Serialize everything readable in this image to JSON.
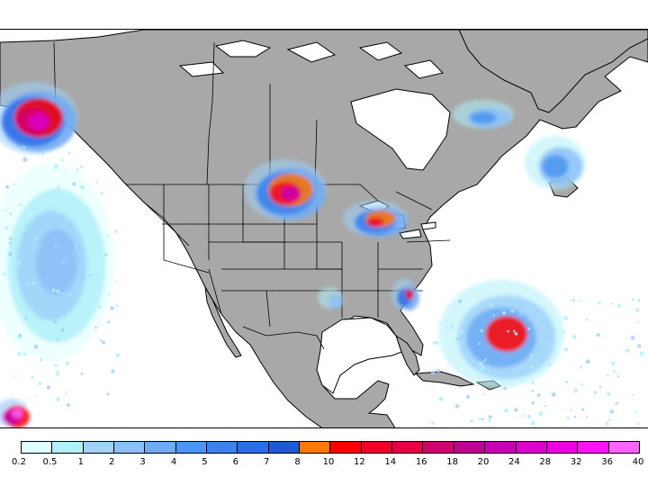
{
  "map": {
    "region": "North America",
    "land_color": "#a8a8a8",
    "ocean_color": "#ffffff",
    "boundary_color": "#000000"
  },
  "legend": {
    "ticks": [
      "0.2",
      "0.5",
      "1",
      "2",
      "3",
      "4",
      "5",
      "6",
      "7",
      "8",
      "10",
      "12",
      "14",
      "16",
      "18",
      "20",
      "24",
      "28",
      "32",
      "36",
      "40"
    ],
    "colors": [
      "#e0ffff",
      "#b0f0f8",
      "#a0d2fa",
      "#8cc0f8",
      "#6eaaf5",
      "#4b96f0",
      "#3c82eb",
      "#2a6ee6",
      "#1e5ad2",
      "#ff7800",
      "#ff0000",
      "#f00028",
      "#e60046",
      "#d2006e",
      "#be0096",
      "#c800b4",
      "#dc00c8",
      "#f000dc",
      "#ff14f0",
      "#ff64ff"
    ]
  },
  "precip_areas": [
    {
      "area": "Gulf of Alaska coast",
      "levels": [
        1,
        3,
        6,
        10,
        16,
        24
      ]
    },
    {
      "area": "Northern Plains / Manitoba",
      "levels": [
        1,
        3,
        5,
        8,
        12,
        20
      ]
    },
    {
      "area": "Great Lakes",
      "levels": [
        1,
        3,
        5,
        8,
        12
      ]
    },
    {
      "area": "Hudson Bay / Quebec",
      "levels": [
        0.5,
        2,
        4
      ]
    },
    {
      "area": "Labrador / Newfoundland",
      "levels": [
        0.5,
        2,
        4
      ]
    },
    {
      "area": "Georgia / Florida",
      "levels": [
        1,
        3,
        6,
        12
      ]
    },
    {
      "area": "Southern Texas",
      "levels": [
        0.5,
        2
      ]
    },
    {
      "area": "Western Atlantic",
      "levels": [
        0.5,
        1,
        3,
        10
      ]
    },
    {
      "area": "Eastern Pacific",
      "levels": [
        0.2,
        0.5,
        1,
        2
      ]
    },
    {
      "area": "Lower-left Pacific corner",
      "levels": [
        2,
        10,
        20,
        40
      ]
    }
  ]
}
